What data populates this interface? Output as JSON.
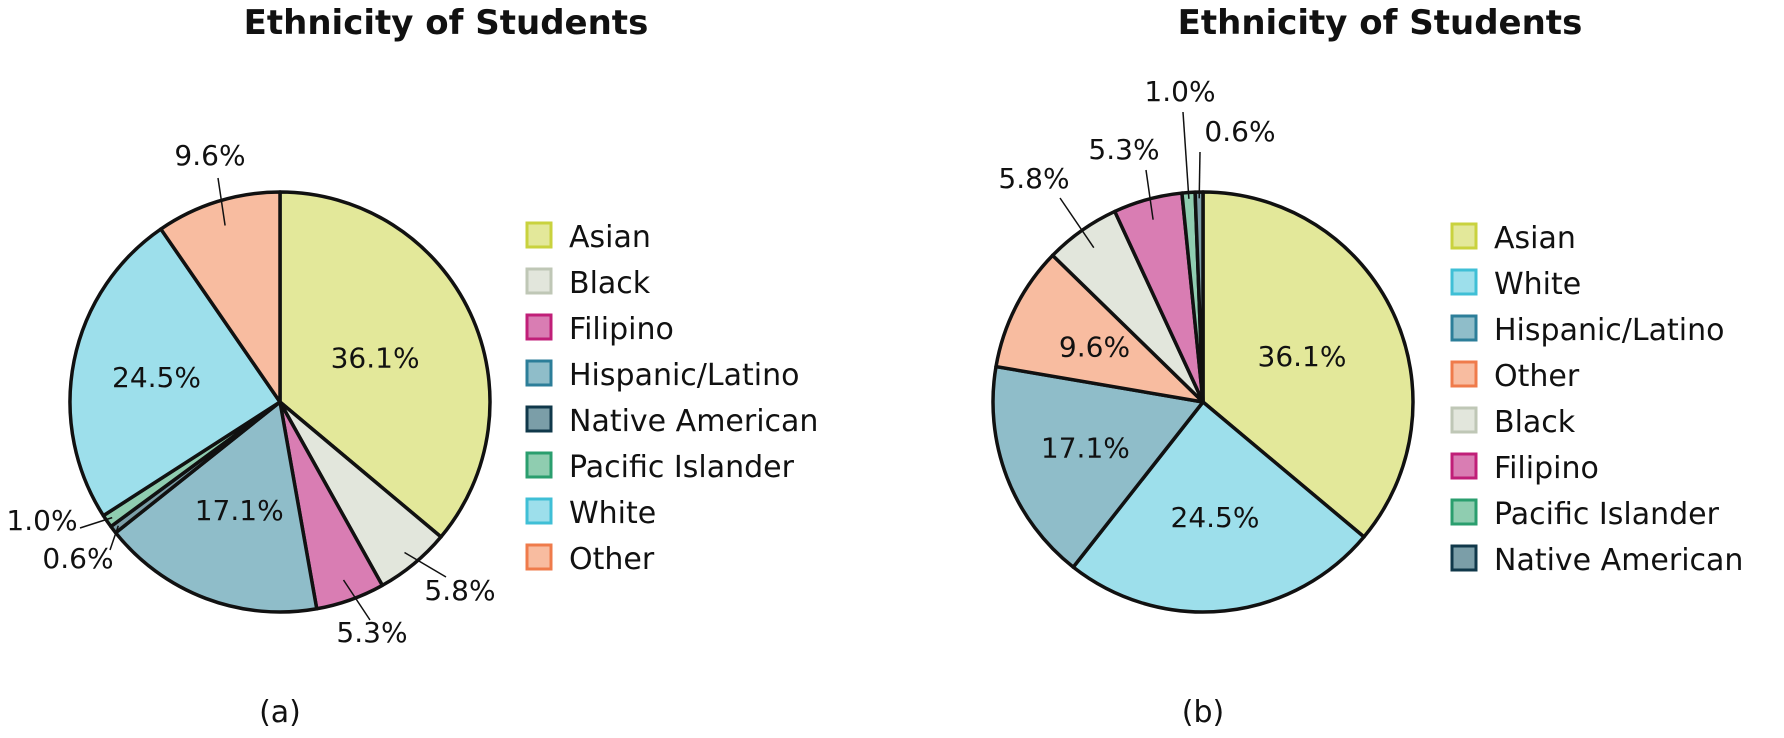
{
  "colors": {
    "Asian": {
      "fill": "#e3e89a",
      "legend_border": "#c9d23e"
    },
    "Black": {
      "fill": "#e2e6dc",
      "legend_border": "#bfc7b6"
    },
    "Filipino": {
      "fill": "#d97db3",
      "legend_border": "#c01f78"
    },
    "Hispanic/Latino": {
      "fill": "#8fbdc9",
      "legend_border": "#2c7e99"
    },
    "Native American": {
      "fill": "#7b9ea8",
      "legend_border": "#10384a"
    },
    "Pacific Islander": {
      "fill": "#8fcdb0",
      "legend_border": "#2a9e6e"
    },
    "White": {
      "fill": "#9ddfeb",
      "legend_border": "#3fbfd6"
    },
    "Other": {
      "fill": "#f8bca0",
      "legend_border": "#ef7b4b"
    }
  },
  "chart_data": [
    {
      "type": "pie",
      "title": "Ethnicity of Students",
      "panel_label": "(a)",
      "legend": [
        "Asian",
        "Black",
        "Filipino",
        "Hispanic/Latino",
        "Native American",
        "Pacific Islander",
        "White",
        "Other"
      ],
      "slices": [
        {
          "name": "Asian",
          "value": 36.1,
          "label": "36.1%"
        },
        {
          "name": "Black",
          "value": 5.8,
          "label": "5.8%"
        },
        {
          "name": "Filipino",
          "value": 5.3,
          "label": "5.3%"
        },
        {
          "name": "Hispanic/Latino",
          "value": 17.1,
          "label": "17.1%"
        },
        {
          "name": "Native American",
          "value": 0.6,
          "label": "0.6%"
        },
        {
          "name": "Pacific Islander",
          "value": 1.0,
          "label": "1.0%"
        },
        {
          "name": "White",
          "value": 24.5,
          "label": "24.5%"
        },
        {
          "name": "Other",
          "value": 9.6,
          "label": "9.6%"
        }
      ]
    },
    {
      "type": "pie",
      "title": "Ethnicity of Students",
      "panel_label": "(b)",
      "legend": [
        "Asian",
        "White",
        "Hispanic/Latino",
        "Other",
        "Black",
        "Filipino",
        "Pacific Islander",
        "Native American"
      ],
      "slices": [
        {
          "name": "Asian",
          "value": 36.1,
          "label": "36.1%"
        },
        {
          "name": "White",
          "value": 24.5,
          "label": "24.5%"
        },
        {
          "name": "Hispanic/Latino",
          "value": 17.1,
          "label": "17.1%"
        },
        {
          "name": "Other",
          "value": 9.6,
          "label": "9.6%"
        },
        {
          "name": "Black",
          "value": 5.8,
          "label": "5.8%"
        },
        {
          "name": "Filipino",
          "value": 5.3,
          "label": "5.3%"
        },
        {
          "name": "Pacific Islander",
          "value": 1.0,
          "label": "1.0%"
        },
        {
          "name": "Native American",
          "value": 0.6,
          "label": "0.6%"
        }
      ]
    }
  ]
}
